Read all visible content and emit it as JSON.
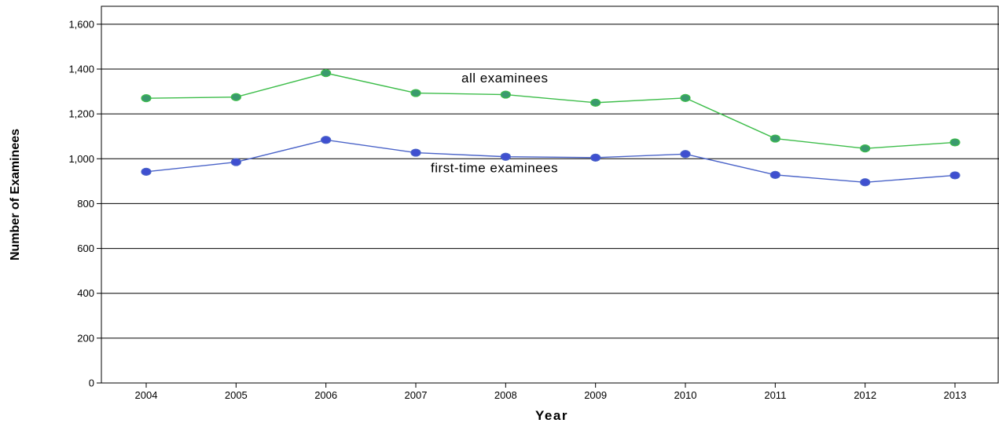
{
  "chart_data": {
    "type": "line",
    "categories": [
      "2004",
      "2005",
      "2006",
      "2007",
      "2008",
      "2009",
      "2010",
      "2011",
      "2012",
      "2013"
    ],
    "series": [
      {
        "name": "all examinees",
        "color": "#3dbd4a",
        "marker_color": "#3a9a6e",
        "values": [
          1270,
          1275,
          1382,
          1293,
          1286,
          1250,
          1271,
          1090,
          1046,
          1073
        ]
      },
      {
        "name": "first-time examinees",
        "color": "#4a63c8",
        "marker_color": "#3f4fd0",
        "values": [
          942,
          985,
          1084,
          1027,
          1009,
          1005,
          1021,
          928,
          895,
          926
        ]
      }
    ],
    "xlabel": "Year",
    "ylabel": "Number of Examinees",
    "ylim": [
      0,
      1680
    ],
    "yticks": [
      0,
      200,
      400,
      600,
      800,
      1000,
      1200,
      1400,
      1600
    ],
    "ytick_labels": [
      "0",
      "200",
      "400",
      "600",
      "800",
      "1,000",
      "1,200",
      "1,400",
      "1,600"
    ],
    "grid": "horizontal",
    "legend": "none (series labeled inline)"
  }
}
